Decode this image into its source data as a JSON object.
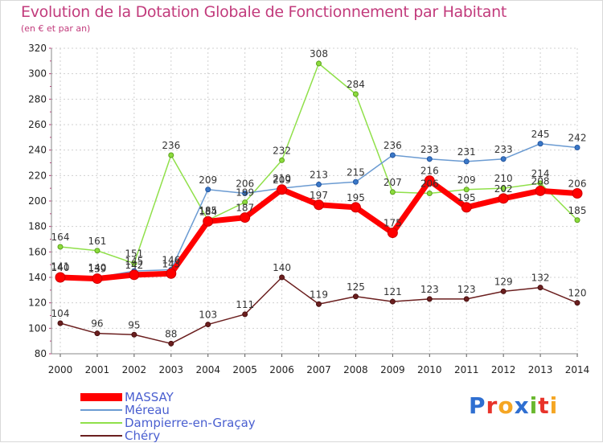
{
  "header": {
    "title": "Evolution de la Dotation Globale de Fonctionnement par Habitant",
    "subtitle": "(en € et par an)"
  },
  "logo": {
    "text": "Proxiti",
    "colors": [
      "#2f6fd1",
      "#e8332a",
      "#f5a623",
      "#2f6fd1",
      "#6ab82f",
      "#e8332a",
      "#f5a623"
    ]
  },
  "colors": {
    "MASSAY": "#ff0000",
    "Méreau": "#6b9bd2",
    "Dampierre-en-Graçay": "#90e04a",
    "Chéry": "#6b1f1f"
  },
  "chart_data": {
    "type": "line",
    "title": "Evolution de la Dotation Globale de Fonctionnement par Habitant",
    "subtitle": "(en € et par an)",
    "x": [
      "2000",
      "2001",
      "2002",
      "2003",
      "2004",
      "2005",
      "2006",
      "2007",
      "2008",
      "2009",
      "2010",
      "2011",
      "2012",
      "2013",
      "2014"
    ],
    "ylim": [
      80,
      320
    ],
    "yticks": [
      80,
      100,
      120,
      140,
      160,
      180,
      200,
      220,
      240,
      260,
      280,
      300,
      320
    ],
    "grid": true,
    "legend": "bottom-left",
    "series": [
      {
        "name": "MASSAY",
        "values": [
          140,
          139,
          142,
          143,
          184,
          187,
          209,
          197,
          195,
          175,
          216,
          195,
          202,
          208,
          206
        ]
      },
      {
        "name": "Méreau",
        "values": [
          141,
          140,
          145,
          146,
          209,
          206,
          210,
          213,
          215,
          236,
          233,
          231,
          233,
          245,
          242
        ]
      },
      {
        "name": "Dampierre-en-Graçay",
        "values": [
          164,
          161,
          151,
          236,
          185,
          199,
          232,
          308,
          284,
          207,
          206,
          209,
          210,
          214,
          185
        ]
      },
      {
        "name": "Chéry",
        "values": [
          104,
          96,
          95,
          88,
          103,
          111,
          140,
          119,
          125,
          121,
          123,
          123,
          129,
          132,
          120
        ]
      }
    ]
  }
}
